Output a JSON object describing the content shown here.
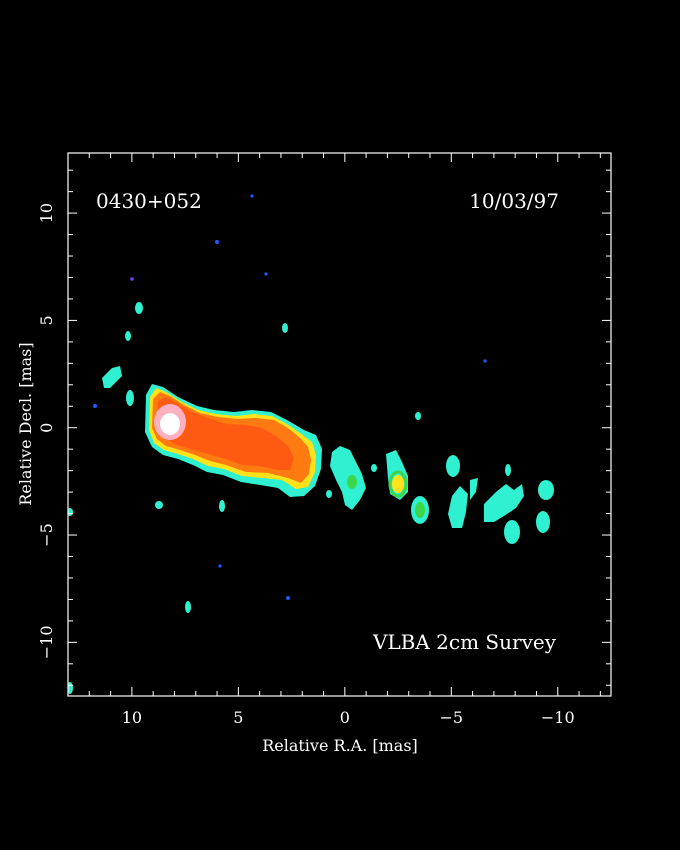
{
  "image": {
    "source_label": "0430+052",
    "date": "10/03/97",
    "survey_label": "VLBA 2cm Survey"
  },
  "axes": {
    "x_label": "Relative R.A. [mas]",
    "y_label": "Relative Decl. [mas]",
    "x_range": [
      13,
      -12.5
    ],
    "y_range": [
      -12.5,
      12.8
    ],
    "x_ticks": [
      {
        "value": 10,
        "label": "10"
      },
      {
        "value": 5,
        "label": "5"
      },
      {
        "value": 0,
        "label": "0"
      },
      {
        "value": -5,
        "label": "−5"
      },
      {
        "value": -10,
        "label": "−10"
      }
    ],
    "y_ticks": [
      {
        "value": 10,
        "label": "10"
      },
      {
        "value": 5,
        "label": "5"
      },
      {
        "value": 0,
        "label": "0"
      },
      {
        "value": -5,
        "label": "−5"
      },
      {
        "value": -10,
        "label": "−10"
      }
    ]
  },
  "colors": {
    "background": "#000000",
    "frame": "#ffffff",
    "blue_low": "#1e5bff",
    "cyan": "#2ff0d0",
    "green": "#3cd64a",
    "yellow": "#ffe21a",
    "orange": "#ff7a10",
    "red_orange": "#ff5a12",
    "peak_pink": "#ffb0c0",
    "peak_white": "#ffffff"
  }
}
